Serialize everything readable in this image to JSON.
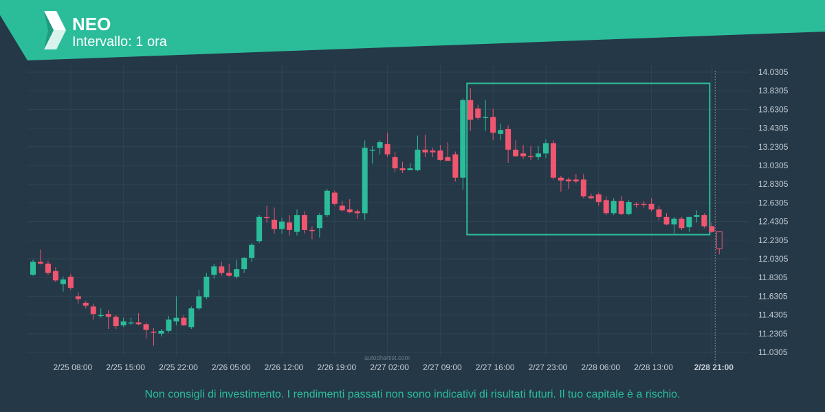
{
  "header": {
    "symbol": "NEO",
    "interval": "Intervallo: 1 ora",
    "accent": "#2bbd9a",
    "logo_icon": "autochartist-logo-icon"
  },
  "watermark": "autochartist.com",
  "disclaimer": "Non consigli di investimento. I rendimenti passati non sono indicativi di risultati futuri. Il tuo capitale è a rischio.",
  "chart_data": {
    "type": "candlestick",
    "title": "NEO",
    "interval": "1 ora",
    "y_ticks": [
      "14.0305",
      "13.8305",
      "13.6305",
      "13.4305",
      "13.2305",
      "13.0305",
      "12.8305",
      "12.6305",
      "12.4305",
      "12.2305",
      "12.0305",
      "11.8305",
      "11.6305",
      "11.4305",
      "11.2305",
      "11.0305"
    ],
    "ylim": [
      10.97,
      14.1
    ],
    "x_ticks": [
      "2/25 08:00",
      "2/25 15:00",
      "2/25 22:00",
      "2/26 05:00",
      "2/26 12:00",
      "2/26 19:00",
      "2/27 02:00",
      "2/27 09:00",
      "2/27 16:00",
      "2/27 23:00",
      "2/28 06:00",
      "2/28 13:00",
      "2/28 21:00"
    ],
    "x_tick_index": [
      5,
      12,
      19,
      26,
      33,
      40,
      47,
      54,
      61,
      68,
      75,
      82,
      90
    ],
    "up_color": "#2bbd9a",
    "down_color": "#f0566f",
    "candles": [
      {
        "o": 11.86,
        "h": 12.02,
        "l": 11.85,
        "c": 12.0
      },
      {
        "o": 12.0,
        "h": 12.13,
        "l": 11.97,
        "c": 11.98
      },
      {
        "o": 11.98,
        "h": 12.01,
        "l": 11.86,
        "c": 11.88
      },
      {
        "o": 11.9,
        "h": 11.94,
        "l": 11.78,
        "c": 11.8
      },
      {
        "o": 11.76,
        "h": 11.84,
        "l": 11.68,
        "c": 11.81
      },
      {
        "o": 11.84,
        "h": 11.87,
        "l": 11.7,
        "c": 11.72
      },
      {
        "o": 11.63,
        "h": 11.67,
        "l": 11.55,
        "c": 11.6
      },
      {
        "o": 11.56,
        "h": 11.58,
        "l": 11.5,
        "c": 11.53
      },
      {
        "o": 11.52,
        "h": 11.55,
        "l": 11.38,
        "c": 11.44
      },
      {
        "o": 11.42,
        "h": 11.5,
        "l": 11.4,
        "c": 11.43
      },
      {
        "o": 11.44,
        "h": 11.48,
        "l": 11.28,
        "c": 11.41
      },
      {
        "o": 11.41,
        "h": 11.43,
        "l": 11.28,
        "c": 11.31
      },
      {
        "o": 11.32,
        "h": 11.4,
        "l": 11.3,
        "c": 11.36
      },
      {
        "o": 11.35,
        "h": 11.4,
        "l": 11.32,
        "c": 11.35
      },
      {
        "o": 11.35,
        "h": 11.45,
        "l": 11.32,
        "c": 11.33
      },
      {
        "o": 11.33,
        "h": 11.35,
        "l": 11.18,
        "c": 11.27
      },
      {
        "o": 11.25,
        "h": 11.29,
        "l": 11.1,
        "c": 11.24
      },
      {
        "o": 11.23,
        "h": 11.28,
        "l": 11.2,
        "c": 11.26
      },
      {
        "o": 11.26,
        "h": 11.42,
        "l": 11.24,
        "c": 11.38
      },
      {
        "o": 11.36,
        "h": 11.63,
        "l": 11.32,
        "c": 11.4
      },
      {
        "o": 11.4,
        "h": 11.43,
        "l": 11.31,
        "c": 11.32
      },
      {
        "o": 11.3,
        "h": 11.52,
        "l": 11.28,
        "c": 11.5
      },
      {
        "o": 11.5,
        "h": 11.7,
        "l": 11.48,
        "c": 11.63
      },
      {
        "o": 11.62,
        "h": 11.88,
        "l": 11.6,
        "c": 11.84
      },
      {
        "o": 11.86,
        "h": 11.98,
        "l": 11.82,
        "c": 11.95
      },
      {
        "o": 11.95,
        "h": 12.0,
        "l": 11.85,
        "c": 11.88
      },
      {
        "o": 11.88,
        "h": 11.98,
        "l": 11.84,
        "c": 11.85
      },
      {
        "o": 11.84,
        "h": 12.02,
        "l": 11.82,
        "c": 11.92
      },
      {
        "o": 11.92,
        "h": 12.05,
        "l": 11.88,
        "c": 12.04
      },
      {
        "o": 12.04,
        "h": 12.2,
        "l": 12.0,
        "c": 12.18
      },
      {
        "o": 12.22,
        "h": 12.5,
        "l": 12.2,
        "c": 12.48
      },
      {
        "o": 12.48,
        "h": 12.6,
        "l": 12.42,
        "c": 12.47
      },
      {
        "o": 12.45,
        "h": 12.58,
        "l": 12.3,
        "c": 12.35
      },
      {
        "o": 12.35,
        "h": 12.47,
        "l": 12.3,
        "c": 12.43
      },
      {
        "o": 12.42,
        "h": 12.5,
        "l": 12.28,
        "c": 12.34
      },
      {
        "o": 12.32,
        "h": 12.56,
        "l": 12.28,
        "c": 12.5
      },
      {
        "o": 12.5,
        "h": 12.54,
        "l": 12.3,
        "c": 12.34
      },
      {
        "o": 12.34,
        "h": 12.38,
        "l": 12.24,
        "c": 12.33
      },
      {
        "o": 12.36,
        "h": 12.52,
        "l": 12.26,
        "c": 12.5
      },
      {
        "o": 12.5,
        "h": 12.78,
        "l": 12.48,
        "c": 12.76
      },
      {
        "o": 12.74,
        "h": 12.76,
        "l": 12.6,
        "c": 12.62
      },
      {
        "o": 12.6,
        "h": 12.65,
        "l": 12.54,
        "c": 12.55
      },
      {
        "o": 12.56,
        "h": 12.67,
        "l": 12.52,
        "c": 12.53
      },
      {
        "o": 12.54,
        "h": 12.56,
        "l": 12.46,
        "c": 12.52
      },
      {
        "o": 12.52,
        "h": 13.3,
        "l": 12.45,
        "c": 13.22
      },
      {
        "o": 13.2,
        "h": 13.24,
        "l": 13.05,
        "c": 13.2
      },
      {
        "o": 13.22,
        "h": 13.3,
        "l": 13.15,
        "c": 13.28
      },
      {
        "o": 13.26,
        "h": 13.38,
        "l": 13.12,
        "c": 13.15
      },
      {
        "o": 13.12,
        "h": 13.18,
        "l": 12.96,
        "c": 13.0
      },
      {
        "o": 13.0,
        "h": 13.07,
        "l": 12.95,
        "c": 12.98
      },
      {
        "o": 12.98,
        "h": 13.06,
        "l": 12.98,
        "c": 13.0
      },
      {
        "o": 12.98,
        "h": 13.35,
        "l": 12.97,
        "c": 13.2
      },
      {
        "o": 13.2,
        "h": 13.36,
        "l": 13.12,
        "c": 13.17
      },
      {
        "o": 13.19,
        "h": 13.22,
        "l": 13.12,
        "c": 13.17
      },
      {
        "o": 13.19,
        "h": 13.25,
        "l": 13.08,
        "c": 13.09
      },
      {
        "o": 13.12,
        "h": 13.28,
        "l": 13.08,
        "c": 13.08
      },
      {
        "o": 13.15,
        "h": 13.18,
        "l": 12.86,
        "c": 12.9
      },
      {
        "o": 12.9,
        "h": 13.75,
        "l": 12.77,
        "c": 13.73
      },
      {
        "o": 13.73,
        "h": 13.86,
        "l": 13.4,
        "c": 13.52
      },
      {
        "o": 13.64,
        "h": 13.68,
        "l": 13.52,
        "c": 13.54
      },
      {
        "o": 13.55,
        "h": 13.73,
        "l": 13.4,
        "c": 13.55
      },
      {
        "o": 13.55,
        "h": 13.64,
        "l": 13.3,
        "c": 13.38
      },
      {
        "o": 13.37,
        "h": 13.48,
        "l": 13.3,
        "c": 13.41
      },
      {
        "o": 13.42,
        "h": 13.46,
        "l": 13.06,
        "c": 13.2
      },
      {
        "o": 13.2,
        "h": 13.3,
        "l": 13.12,
        "c": 13.13
      },
      {
        "o": 13.16,
        "h": 13.25,
        "l": 13.1,
        "c": 13.13
      },
      {
        "o": 13.13,
        "h": 13.24,
        "l": 13.09,
        "c": 13.12
      },
      {
        "o": 13.12,
        "h": 13.24,
        "l": 13.09,
        "c": 13.16
      },
      {
        "o": 13.16,
        "h": 13.31,
        "l": 13.11,
        "c": 13.27
      },
      {
        "o": 13.27,
        "h": 13.3,
        "l": 12.88,
        "c": 12.9
      },
      {
        "o": 12.9,
        "h": 12.92,
        "l": 12.75,
        "c": 12.87
      },
      {
        "o": 12.88,
        "h": 12.9,
        "l": 12.78,
        "c": 12.86
      },
      {
        "o": 12.88,
        "h": 12.94,
        "l": 12.84,
        "c": 12.86
      },
      {
        "o": 12.88,
        "h": 12.94,
        "l": 12.68,
        "c": 12.7
      },
      {
        "o": 12.7,
        "h": 12.73,
        "l": 12.67,
        "c": 12.68
      },
      {
        "o": 12.72,
        "h": 12.74,
        "l": 12.6,
        "c": 12.64
      },
      {
        "o": 12.66,
        "h": 12.7,
        "l": 12.5,
        "c": 12.52
      },
      {
        "o": 12.52,
        "h": 12.68,
        "l": 12.5,
        "c": 12.65
      },
      {
        "o": 12.65,
        "h": 12.7,
        "l": 12.5,
        "c": 12.51
      },
      {
        "o": 12.51,
        "h": 12.66,
        "l": 12.5,
        "c": 12.64
      },
      {
        "o": 12.62,
        "h": 12.64,
        "l": 12.58,
        "c": 12.61
      },
      {
        "o": 12.62,
        "h": 12.65,
        "l": 12.58,
        "c": 12.61
      },
      {
        "o": 12.62,
        "h": 12.68,
        "l": 12.54,
        "c": 12.56
      },
      {
        "o": 12.56,
        "h": 12.6,
        "l": 12.44,
        "c": 12.48
      },
      {
        "o": 12.48,
        "h": 12.52,
        "l": 12.39,
        "c": 12.4
      },
      {
        "o": 12.4,
        "h": 12.48,
        "l": 12.3,
        "c": 12.46
      },
      {
        "o": 12.46,
        "h": 12.48,
        "l": 12.34,
        "c": 12.36
      },
      {
        "o": 12.37,
        "h": 12.48,
        "l": 12.32,
        "c": 12.48
      },
      {
        "o": 12.48,
        "h": 12.55,
        "l": 12.42,
        "c": 12.5
      },
      {
        "o": 12.5,
        "h": 12.52,
        "l": 12.36,
        "c": 12.38
      },
      {
        "o": 12.38,
        "h": 12.42,
        "l": 12.31,
        "c": 12.32
      },
      {
        "o": 12.32,
        "h": 12.32,
        "l": 12.08,
        "c": 12.14
      }
    ],
    "pattern_box": {
      "start_index": 58,
      "end_index": 89,
      "high": 13.91,
      "low": 12.29,
      "color": "#2bbd9a"
    }
  }
}
